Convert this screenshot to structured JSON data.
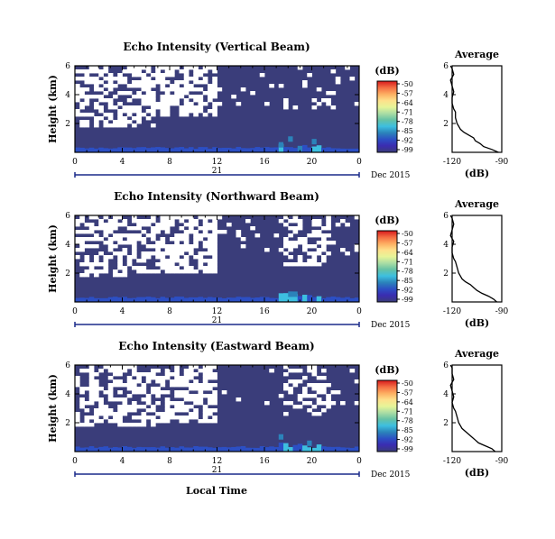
{
  "x_axis": {
    "ticks": [
      "0",
      "4",
      "8",
      "12",
      "16",
      "20",
      "0"
    ],
    "date_day": "21",
    "date_label": "Dec 2015",
    "label": "Local Time"
  },
  "y_axis": {
    "label": "Height (km)",
    "ticks": [
      "6",
      "4",
      "2"
    ]
  },
  "colorbar": {
    "unit": "(dB)",
    "labels": [
      "-50",
      "-57",
      "-64",
      "-71",
      "-78",
      "-85",
      "-92",
      "-99"
    ],
    "colors": [
      "#d7191c",
      "#f46d43",
      "#fdae61",
      "#fee08b",
      "#e6f598",
      "#abdda4",
      "#66c2a5",
      "#3dbfe0",
      "#2b83ba",
      "#2c4fc4",
      "#3b2cb0",
      "#3a3d7a"
    ],
    "background": "#3a3d7a"
  },
  "average": {
    "title": "Average",
    "xticks": [
      "-120",
      "-90"
    ],
    "xlabel": "(dB)",
    "yticks": [
      "6",
      "4",
      "2"
    ]
  },
  "chart_data": [
    {
      "type": "heatmap",
      "title": "Echo Intensity (Vertical Beam)",
      "xlabel": "Local Time",
      "ylabel": "Height (km)",
      "xlim": [
        0,
        24
      ],
      "ylim": [
        0,
        6
      ],
      "zlim": [
        -99,
        -50
      ],
      "average_profile": {
        "xlim": [
          -120,
          -90
        ],
        "height": [
          0.0,
          0.2,
          0.4,
          0.6,
          0.8,
          1.0,
          1.2,
          1.4,
          1.6,
          2.0,
          2.4,
          2.8,
          3.0,
          3.4,
          3.8,
          4.2,
          4.6,
          5.0,
          5.4,
          5.8,
          6.0
        ],
        "value": [
          -92,
          -96,
          -101,
          -103,
          -106,
          -107,
          -110,
          -113,
          -115,
          -117,
          -118,
          -118,
          -119,
          -120,
          -120,
          -119,
          -120,
          -121,
          -119,
          -120,
          -121
        ]
      }
    },
    {
      "type": "heatmap",
      "title": "Echo Intensity (Northward Beam)",
      "xlabel": "Local Time",
      "ylabel": "Height (km)",
      "xlim": [
        0,
        24
      ],
      "ylim": [
        0,
        6
      ],
      "zlim": [
        -99,
        -50
      ],
      "average_profile": {
        "xlim": [
          -120,
          -90
        ],
        "height": [
          0.0,
          0.2,
          0.4,
          0.6,
          0.8,
          1.0,
          1.2,
          1.4,
          1.6,
          2.0,
          2.4,
          2.8,
          3.0,
          3.4,
          3.8,
          4.2,
          4.6,
          5.0,
          5.4,
          5.8,
          6.0
        ],
        "value": [
          -93,
          -95,
          -98,
          -102,
          -105,
          -107,
          -109,
          -112,
          -114,
          -116,
          -117,
          -118,
          -119,
          -120,
          -120,
          -119,
          -121,
          -120,
          -119,
          -120,
          -121
        ]
      }
    },
    {
      "type": "heatmap",
      "title": "Echo Intensity (Eastward Beam)",
      "xlabel": "Local Time",
      "ylabel": "Height (km)",
      "xlim": [
        0,
        24
      ],
      "ylim": [
        0,
        6
      ],
      "zlim": [
        -99,
        -50
      ],
      "average_profile": {
        "xlim": [
          -120,
          -90
        ],
        "height": [
          0.0,
          0.2,
          0.4,
          0.6,
          0.8,
          1.0,
          1.2,
          1.4,
          1.6,
          2.0,
          2.4,
          2.8,
          3.0,
          3.4,
          3.8,
          4.2,
          4.6,
          5.0,
          5.4,
          5.8,
          6.0
        ],
        "value": [
          -94,
          -96,
          -100,
          -104,
          -106,
          -108,
          -110,
          -112,
          -114,
          -116,
          -117,
          -118,
          -119,
          -120,
          -119,
          -120,
          -121,
          -119,
          -120,
          -120,
          -121
        ]
      }
    }
  ]
}
